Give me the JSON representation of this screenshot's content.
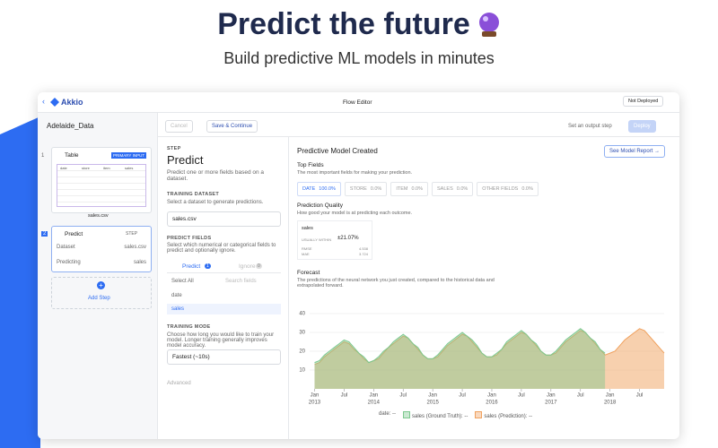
{
  "header": {
    "title": "Predict the future",
    "subtitle": "Build predictive ML models in minutes"
  },
  "topbar": {
    "brand": "Akkio",
    "title": "Flow Editor",
    "status": "Not Deployed"
  },
  "sidebar": {
    "project": "Adelaide_Data",
    "table_step": {
      "number": "1",
      "title": "Table",
      "badge": "PRIMARY INPUT",
      "columns": [
        "date",
        "store",
        "item",
        "sales"
      ],
      "file": "sales.csv"
    },
    "predict_step": {
      "number": "2",
      "title": "Predict",
      "badge": "STEP",
      "rows": [
        [
          "Dataset",
          "sales.csv"
        ],
        [
          "Predicting",
          "sales"
        ]
      ]
    },
    "add_step": "Add Step"
  },
  "toolbar": {
    "cancel": "Cancel",
    "save": "Save & Continue",
    "output": "Set an output step",
    "deploy": "Deploy"
  },
  "step_panel": {
    "kicker": "STEP",
    "title": "Predict",
    "description": "Predict one or more fields based on a dataset.",
    "training_dataset": {
      "label": "TRAINING DATASET",
      "help": "Select a dataset to generate predictions.",
      "value": "sales.csv"
    },
    "predict_fields": {
      "label": "PREDICT FIELDS",
      "help": "Select which numerical or categorical fields to predict and optionally ignore.",
      "tabs": [
        [
          "Predict",
          "1"
        ],
        [
          "Ignore",
          "0"
        ]
      ],
      "select_all": "Select All",
      "search": "Search fields",
      "fields": [
        "date",
        "sales"
      ]
    },
    "training_mode": {
      "label": "TRAINING MODE",
      "help": "Choose how long you would like to train your model. Longer training generally improves model accuracy.",
      "value": "Fastest (~10s)"
    },
    "advanced": "Advanced"
  },
  "results": {
    "title": "Predictive Model Created",
    "report": "See Model Report →",
    "top_fields": {
      "title": "Top Fields",
      "help": "The most important fields for making your prediction.",
      "chips": [
        [
          "DATE",
          "100.0%"
        ],
        [
          "STORE",
          "0.0%"
        ],
        [
          "ITEM",
          "0.0%"
        ],
        [
          "SALES",
          "0.0%"
        ],
        [
          "OTHER FIELDS",
          "0.0%"
        ]
      ]
    },
    "quality": {
      "title": "Prediction Quality",
      "help": "How good your model is at predicting each outcome.",
      "field": "sales",
      "within_label": "USUALLY WITHIN",
      "within": "±21.07%",
      "metrics": [
        [
          "RMSE",
          "4.538"
        ],
        [
          "MAE",
          "3.724"
        ]
      ]
    }
  },
  "chart_data": {
    "type": "line",
    "title": "Forecast",
    "subtitle": "The predictions of the neural network you just created, compared to the historical data and extrapolated forward.",
    "x": [
      "2013-01",
      "2013-02",
      "2013-03",
      "2013-04",
      "2013-05",
      "2013-06",
      "2013-07",
      "2013-08",
      "2013-09",
      "2013-10",
      "2013-11",
      "2013-12",
      "2014-01",
      "2014-02",
      "2014-03",
      "2014-04",
      "2014-05",
      "2014-06",
      "2014-07",
      "2014-08",
      "2014-09",
      "2014-10",
      "2014-11",
      "2014-12",
      "2015-01",
      "2015-02",
      "2015-03",
      "2015-04",
      "2015-05",
      "2015-06",
      "2015-07",
      "2015-08",
      "2015-09",
      "2015-10",
      "2015-11",
      "2015-12",
      "2016-01",
      "2016-02",
      "2016-03",
      "2016-04",
      "2016-05",
      "2016-06",
      "2016-07",
      "2016-08",
      "2016-09",
      "2016-10",
      "2016-11",
      "2016-12",
      "2017-01",
      "2017-02",
      "2017-03",
      "2017-04",
      "2017-05",
      "2017-06",
      "2017-07",
      "2017-08",
      "2017-09",
      "2017-10",
      "2017-11",
      "2017-12",
      "2018-01",
      "2018-02",
      "2018-03",
      "2018-04",
      "2018-05",
      "2018-06",
      "2018-07",
      "2018-08",
      "2018-09",
      "2018-10",
      "2018-11",
      "2018-12"
    ],
    "series": [
      {
        "name": "sales (Ground Truth)",
        "color": "#7cc88e",
        "values": [
          14,
          15,
          18,
          20,
          22,
          24,
          26,
          25,
          22,
          19,
          17,
          14,
          15,
          17,
          20,
          22,
          25,
          27,
          29,
          27,
          24,
          22,
          18,
          16,
          16,
          18,
          21,
          24,
          26,
          28,
          30,
          28,
          26,
          23,
          19,
          17,
          17,
          19,
          21,
          25,
          27,
          29,
          31,
          29,
          26,
          24,
          20,
          18,
          18,
          20,
          23,
          26,
          28,
          30,
          32,
          30,
          27,
          25,
          21,
          19,
          null,
          null,
          null,
          null,
          null,
          null,
          null,
          null,
          null,
          null,
          null,
          null
        ]
      },
      {
        "name": "sales (Prediction)",
        "color": "#f0a15e",
        "values": [
          13,
          14,
          17,
          19,
          21,
          23,
          25,
          24,
          21,
          19,
          16,
          14,
          15,
          16,
          19,
          22,
          24,
          26,
          28,
          27,
          24,
          21,
          18,
          16,
          16,
          17,
          20,
          23,
          25,
          27,
          29,
          28,
          25,
          22,
          19,
          17,
          17,
          18,
          21,
          24,
          26,
          28,
          30,
          29,
          26,
          23,
          20,
          18,
          18,
          19,
          22,
          25,
          27,
          29,
          31,
          30,
          27,
          24,
          21,
          18,
          19,
          20,
          23,
          26,
          28,
          30,
          32,
          31,
          28,
          25,
          22,
          19
        ]
      }
    ],
    "ylim": [
      0,
      45
    ],
    "yticks": [
      10,
      20,
      30,
      40
    ],
    "xlim": [
      "2012-12",
      "2018-12"
    ],
    "xticks": [
      {
        "value": "2013-01",
        "label": "Jan",
        "year": "2013"
      },
      {
        "value": "2013-07",
        "label": "Jul"
      },
      {
        "value": "2014-01",
        "label": "Jan",
        "year": "2014"
      },
      {
        "value": "2014-07",
        "label": "Jul"
      },
      {
        "value": "2015-01",
        "label": "Jan",
        "year": "2015"
      },
      {
        "value": "2015-07",
        "label": "Jul"
      },
      {
        "value": "2016-01",
        "label": "Jan",
        "year": "2016"
      },
      {
        "value": "2016-07",
        "label": "Jul"
      },
      {
        "value": "2017-01",
        "label": "Jan",
        "year": "2017"
      },
      {
        "value": "2017-07",
        "label": "Jul"
      },
      {
        "value": "2018-01",
        "label": "Jan",
        "year": "2018"
      },
      {
        "value": "2018-07",
        "label": "Jul"
      }
    ],
    "grid": true,
    "legend_x": "date: --",
    "legend_value": ": --"
  }
}
